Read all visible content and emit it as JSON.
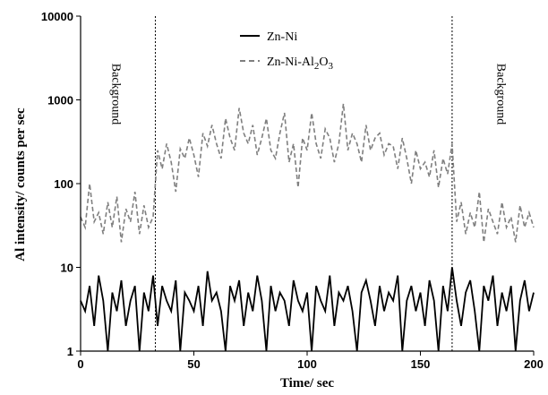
{
  "chart_data": {
    "type": "line",
    "xlabel": "Time/ sec",
    "ylabel": "Al intensity/ counts per sec",
    "xlim": [
      0,
      200
    ],
    "ylim": [
      1,
      10000
    ],
    "y_scale": "log",
    "x_ticks": [
      "0",
      "50",
      "100",
      "150",
      "200"
    ],
    "y_ticks": [
      "1",
      "10",
      "100",
      "1000",
      "10000"
    ],
    "legend_position": "top-center",
    "annotations": [
      {
        "text": "Background",
        "x": 12
      },
      {
        "text": "Background",
        "x": 182
      }
    ],
    "vlines": [
      33,
      164
    ],
    "series": [
      {
        "name": "Zn-Ni",
        "style": "solid",
        "color": "#000000",
        "x": [
          0,
          2,
          4,
          6,
          8,
          10,
          12,
          14,
          16,
          18,
          20,
          22,
          24,
          26,
          28,
          30,
          32,
          34,
          36,
          38,
          40,
          42,
          44,
          46,
          48,
          50,
          52,
          54,
          56,
          58,
          60,
          62,
          64,
          66,
          68,
          70,
          72,
          74,
          76,
          78,
          80,
          82,
          84,
          86,
          88,
          90,
          92,
          94,
          96,
          98,
          100,
          102,
          104,
          106,
          108,
          110,
          112,
          114,
          116,
          118,
          120,
          122,
          124,
          126,
          128,
          130,
          132,
          134,
          136,
          138,
          140,
          142,
          144,
          146,
          148,
          150,
          152,
          154,
          156,
          158,
          160,
          162,
          164,
          166,
          168,
          170,
          172,
          174,
          176,
          178,
          180,
          182,
          184,
          186,
          188,
          190,
          192,
          194,
          196,
          198,
          200
        ],
        "values": [
          4,
          3,
          6,
          2,
          8,
          4,
          1,
          5,
          3,
          7,
          2,
          4,
          6,
          1,
          5,
          3,
          8,
          2,
          6,
          4,
          3,
          7,
          1,
          5,
          4,
          3,
          6,
          2,
          9,
          4,
          5,
          3,
          1,
          6,
          4,
          7,
          2,
          5,
          3,
          8,
          4,
          1,
          6,
          3,
          5,
          4,
          2,
          7,
          4,
          3,
          5,
          1,
          6,
          4,
          3,
          8,
          2,
          5,
          4,
          6,
          3,
          1,
          5,
          7,
          4,
          2,
          6,
          3,
          5,
          4,
          8,
          1,
          4,
          6,
          3,
          5,
          2,
          7,
          4,
          1,
          6,
          3,
          10,
          4,
          2,
          5,
          7,
          3,
          1,
          6,
          4,
          8,
          2,
          5,
          3,
          6,
          1,
          4,
          7,
          3,
          5
        ]
      },
      {
        "name": "Zn-Ni-Al2O3",
        "style": "dashed",
        "color": "#7f7f7f",
        "x": [
          0,
          2,
          4,
          6,
          8,
          10,
          12,
          14,
          16,
          18,
          20,
          22,
          24,
          26,
          28,
          30,
          32,
          34,
          36,
          38,
          40,
          42,
          44,
          46,
          48,
          50,
          52,
          54,
          56,
          58,
          60,
          62,
          64,
          66,
          68,
          70,
          72,
          74,
          76,
          78,
          80,
          82,
          84,
          86,
          88,
          90,
          92,
          94,
          96,
          98,
          100,
          102,
          104,
          106,
          108,
          110,
          112,
          114,
          116,
          118,
          120,
          122,
          124,
          126,
          128,
          130,
          132,
          134,
          136,
          138,
          140,
          142,
          144,
          146,
          148,
          150,
          152,
          154,
          156,
          158,
          160,
          162,
          164,
          166,
          168,
          170,
          172,
          174,
          176,
          178,
          180,
          182,
          184,
          186,
          188,
          190,
          192,
          194,
          196,
          198,
          200
        ],
        "values": [
          40,
          30,
          100,
          35,
          45,
          25,
          60,
          30,
          70,
          20,
          50,
          35,
          80,
          25,
          55,
          30,
          40,
          250,
          150,
          300,
          180,
          80,
          260,
          200,
          350,
          220,
          120,
          400,
          280,
          500,
          300,
          200,
          600,
          350,
          250,
          800,
          400,
          300,
          500,
          220,
          350,
          600,
          250,
          200,
          400,
          700,
          180,
          300,
          90,
          350,
          250,
          700,
          300,
          200,
          450,
          350,
          180,
          300,
          900,
          250,
          400,
          300,
          180,
          500,
          250,
          350,
          400,
          220,
          300,
          280,
          150,
          350,
          200,
          100,
          250,
          150,
          180,
          120,
          250,
          90,
          200,
          130,
          300,
          35,
          60,
          25,
          45,
          30,
          80,
          20,
          50,
          35,
          25,
          60,
          30,
          40,
          20,
          55,
          30,
          45,
          30
        ]
      }
    ]
  },
  "legend": {
    "item1": "Zn-Ni",
    "item2_main": "Zn-Ni-Al",
    "item2_sub1": "2",
    "item2_mid": "O",
    "item2_sub2": "3"
  }
}
